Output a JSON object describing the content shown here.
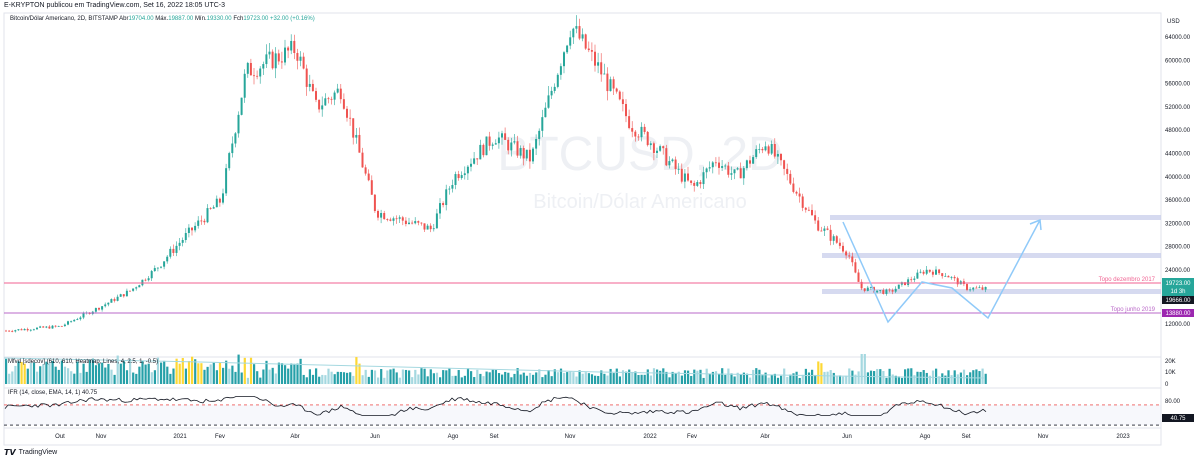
{
  "header": {
    "credit": "E-KRYPTON publicou em TradingView.com, Set 16, 2022 18:05 UTC-3"
  },
  "legend": {
    "symbol": "Bitcoin/Dólar Americano, 2D, BITSTAMP",
    "open_label": "Abr",
    "open": "19704.00",
    "high_label": "Máx.",
    "high": "19887.00",
    "low_label": "Mín.",
    "low": "19330.00",
    "close_label": "Fch",
    "close": "19723.00",
    "change": "+32.00 (+0.16%)"
  },
  "watermark": {
    "ticker": "BTCUSD, 2D",
    "name": "Bitcoin/Dólar Americano"
  },
  "volume_indicator": {
    "label": "Mfvd [sdecov] (610, 610, Heatmap, Lines, 4, 2.5, 1, -0.5)",
    "ticks": [
      "20K",
      "10K",
      "0"
    ]
  },
  "rsi_indicator": {
    "label": "IFR (14, close, EMA, 14, 1)",
    "value": "40.75",
    "ticks": [
      "80.00",
      "40.75"
    ]
  },
  "annotations": {
    "topo_dezembro": "Topo dezembro 2017",
    "topo_junho": "Topo junho 2019"
  },
  "price_badges": {
    "last": "19723.00",
    "countdown": "1d 3h",
    "level1": "19666.00",
    "level2": "13880.00"
  },
  "footer": {
    "brand": "TradingView"
  },
  "colors": {
    "up": "#26a69a",
    "down": "#ef5350",
    "magenta_line": "#e040fb",
    "pink_line": "#f06292",
    "zone": "#c5cae9",
    "arrow": "#90caf9",
    "badge_teal": "#26a69a",
    "badge_purple": "#9c27b0",
    "vol_teal": "#26a0a8",
    "vol_light": "#a5d8e0",
    "vol_yellow": "#fdd835"
  },
  "chart_data": {
    "type": "candlestick",
    "title": "",
    "currency": "USD",
    "y_axis_ticks": [
      64000,
      60000,
      56000,
      52000,
      48000,
      44000,
      40000,
      36000,
      32000,
      28000,
      24000,
      12000
    ],
    "x_axis_ticks": [
      "Out",
      "Nov",
      "2021",
      "Fev",
      "Abr",
      "Jun",
      "Ago",
      "Set",
      "Nov",
      "2022",
      "Fev",
      "Abr",
      "Jun",
      "Ago",
      "Set",
      "Nov",
      "2023"
    ],
    "price_path": [
      [
        "Set",
        10500
      ],
      [
        "Out",
        11500
      ],
      [
        "Nov",
        16000
      ],
      [
        "2021",
        29000
      ],
      [
        "Fev",
        47000
      ],
      [
        "Abr",
        62000
      ],
      [
        "Jun",
        34000
      ],
      [
        "Ago",
        45000
      ],
      [
        "Set",
        47000
      ],
      [
        "Nov",
        66000
      ],
      [
        "2022",
        46000
      ],
      [
        "Fev",
        39000
      ],
      [
        "Abr",
        46000
      ],
      [
        "Jun",
        20000
      ],
      [
        "Ago",
        24000
      ],
      [
        "Set",
        19723
      ]
    ],
    "horizontal_levels": [
      {
        "label": "Topo dezembro 2017",
        "price": 19666
      },
      {
        "label": "Topo junho 2019",
        "price": 13880
      }
    ],
    "zones": [
      32000,
      25000,
      19000
    ],
    "last_price": 19723
  }
}
